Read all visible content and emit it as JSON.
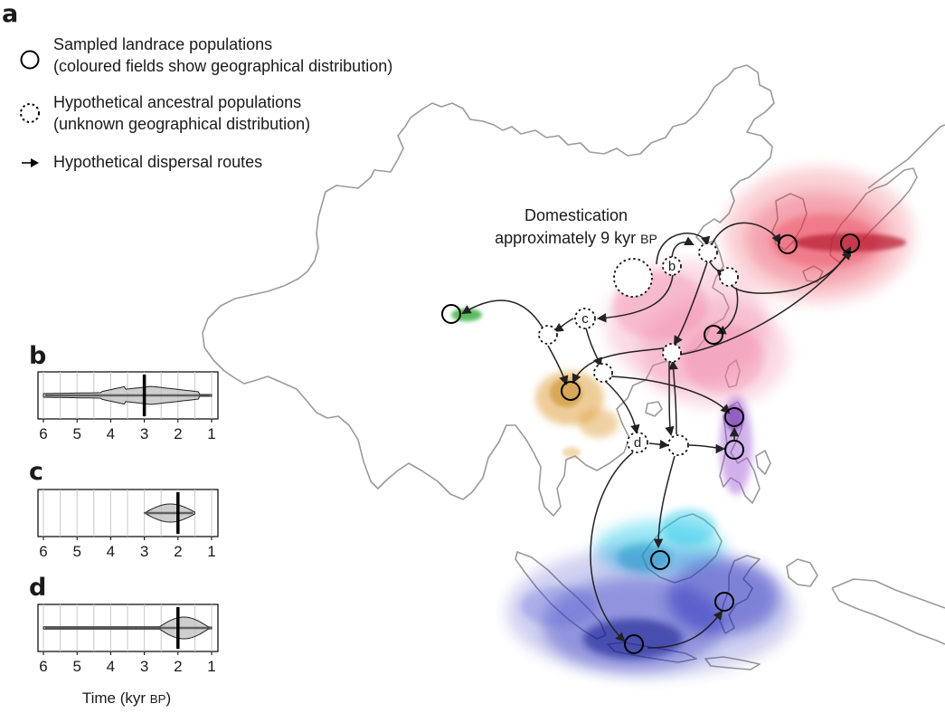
{
  "panel_a": {
    "letter": "a",
    "legend": {
      "sampled": {
        "line1": "Sampled landrace populations",
        "line2": "(coloured fields show geographical distribution)"
      },
      "ancestral": {
        "line1": "Hypothetical ancestral populations",
        "line2": "(unknown geographical distribution)"
      },
      "routes": {
        "line1": "Hypothetical dispersal routes"
      }
    },
    "annotation": {
      "line1": "Domestication",
      "line2_main": "approximately 9 kyr ",
      "line2_sc": "BP"
    },
    "nodes": {
      "b": "b",
      "c": "c",
      "d": "d"
    },
    "distribution_colors": {
      "red": "#e8304a",
      "pink": "#f07aa0",
      "green": "#3cb043",
      "orange": "#d9901a",
      "purple": "#9b55d6",
      "cyan": "#1ec8e6",
      "blue": "#1a22b8"
    },
    "map_line_color": "#9a9a9a"
  },
  "panels_bcd": [
    {
      "letter": "b",
      "median_kyr_bp": 3.0,
      "range_kyr_bp": [
        6.0,
        1.0
      ]
    },
    {
      "letter": "c",
      "median_kyr_bp": 2.0,
      "range_kyr_bp": [
        3.0,
        1.5
      ]
    },
    {
      "letter": "d",
      "median_kyr_bp": 2.0,
      "range_kyr_bp": [
        6.0,
        1.0
      ]
    }
  ],
  "axis": {
    "ticks": [
      "6",
      "5",
      "4",
      "3",
      "2",
      "1"
    ],
    "title_main": "Time (kyr ",
    "title_sc": "BP",
    "title_end": ")"
  }
}
